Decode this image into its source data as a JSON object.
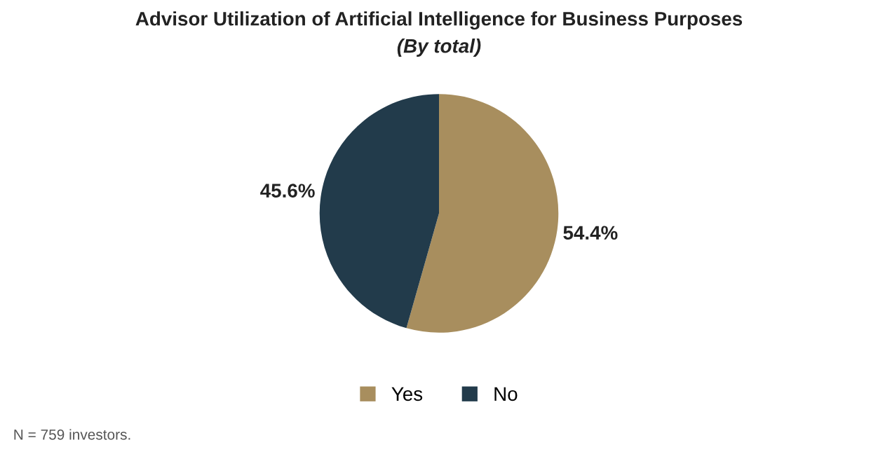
{
  "chart_data": {
    "type": "pie",
    "title": "Advisor Utilization of Artificial Intelligence for Business Purposes",
    "subtitle": "(By total)",
    "categories": [
      "Yes",
      "No"
    ],
    "values": [
      54.4,
      45.6
    ],
    "colors": [
      "#a88e5e",
      "#223b4b"
    ],
    "value_labels": [
      "54.4%",
      "45.6%"
    ],
    "legend": "bottom",
    "annotations": [
      "N = 759 investors."
    ]
  }
}
